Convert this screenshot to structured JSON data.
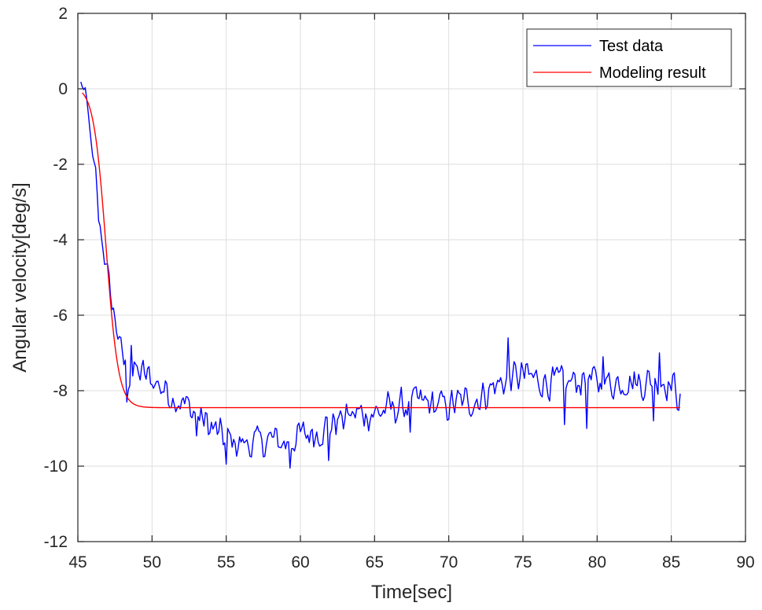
{
  "chart_data": {
    "type": "line",
    "title": "",
    "xlabel": "Time[sec]",
    "ylabel": "Angular velocity[deg/s]",
    "xlim": [
      45,
      90
    ],
    "ylim": [
      -12,
      2
    ],
    "xticks": [
      45,
      50,
      55,
      60,
      65,
      70,
      75,
      80,
      85,
      90
    ],
    "yticks": [
      -12,
      -10,
      -8,
      -6,
      -4,
      -2,
      0,
      2
    ],
    "grid": true,
    "legend_position": "top-right",
    "series": [
      {
        "name": "Test data",
        "color": "#0000ff",
        "model": "noisy",
        "x_start": 45.2,
        "x_end": 85.6,
        "dt": 0.1,
        "key_points": [
          [
            45.2,
            0.15
          ],
          [
            45.5,
            -0.1
          ],
          [
            45.8,
            -1.0
          ],
          [
            46.0,
            -1.9
          ],
          [
            46.2,
            -2.2
          ],
          [
            46.4,
            -3.3
          ],
          [
            46.7,
            -4.2
          ],
          [
            47.0,
            -4.9
          ],
          [
            47.3,
            -5.7
          ],
          [
            47.6,
            -6.3
          ],
          [
            48.0,
            -7.1
          ],
          [
            48.4,
            -7.6
          ],
          [
            49.0,
            -7.5
          ],
          [
            50.0,
            -7.7
          ],
          [
            51.0,
            -8.0
          ],
          [
            52.0,
            -8.3
          ],
          [
            53.0,
            -8.6
          ],
          [
            54.0,
            -9.0
          ],
          [
            55.0,
            -9.3
          ],
          [
            56.0,
            -9.4
          ],
          [
            57.0,
            -9.4
          ],
          [
            58.0,
            -9.3
          ],
          [
            59.0,
            -9.4
          ],
          [
            60.0,
            -9.2
          ],
          [
            61.0,
            -9.1
          ],
          [
            62.0,
            -8.9
          ],
          [
            63.0,
            -8.7
          ],
          [
            64.0,
            -8.6
          ],
          [
            65.0,
            -8.6
          ],
          [
            66.0,
            -8.5
          ],
          [
            67.0,
            -8.4
          ],
          [
            68.0,
            -8.3
          ],
          [
            69.0,
            -8.4
          ],
          [
            70.0,
            -8.4
          ],
          [
            71.0,
            -8.3
          ],
          [
            72.0,
            -8.2
          ],
          [
            73.0,
            -7.9
          ],
          [
            74.0,
            -7.7
          ],
          [
            75.0,
            -7.6
          ],
          [
            76.0,
            -7.7
          ],
          [
            77.0,
            -7.8
          ],
          [
            78.0,
            -7.8
          ],
          [
            79.0,
            -7.7
          ],
          [
            80.0,
            -7.8
          ],
          [
            81.0,
            -7.8
          ],
          [
            82.0,
            -7.7
          ],
          [
            83.0,
            -7.8
          ],
          [
            84.0,
            -7.7
          ],
          [
            85.0,
            -7.8
          ],
          [
            85.6,
            -8.2
          ]
        ],
        "spikes": [
          [
            46.45,
            -3.5
          ],
          [
            48.3,
            -8.3
          ],
          [
            48.6,
            -6.8
          ],
          [
            53.0,
            -9.2
          ],
          [
            55.0,
            -9.95
          ],
          [
            59.3,
            -10.05
          ],
          [
            61.9,
            -9.85
          ],
          [
            67.4,
            -9.1
          ],
          [
            74.0,
            -6.6
          ],
          [
            75.2,
            -7.3
          ],
          [
            77.8,
            -8.9
          ],
          [
            79.3,
            -9.0
          ],
          [
            80.4,
            -7.1
          ],
          [
            83.8,
            -8.8
          ],
          [
            84.2,
            -7.0
          ]
        ],
        "noise_amplitude": 0.35
      },
      {
        "name": "Modeling result",
        "color": "#ff0000",
        "model": "logistic",
        "x_start": 45.3,
        "x_end": 85.6,
        "start_value": 0.08,
        "final_value": -8.45,
        "midpoint": 46.9,
        "scale": 0.42
      }
    ]
  }
}
